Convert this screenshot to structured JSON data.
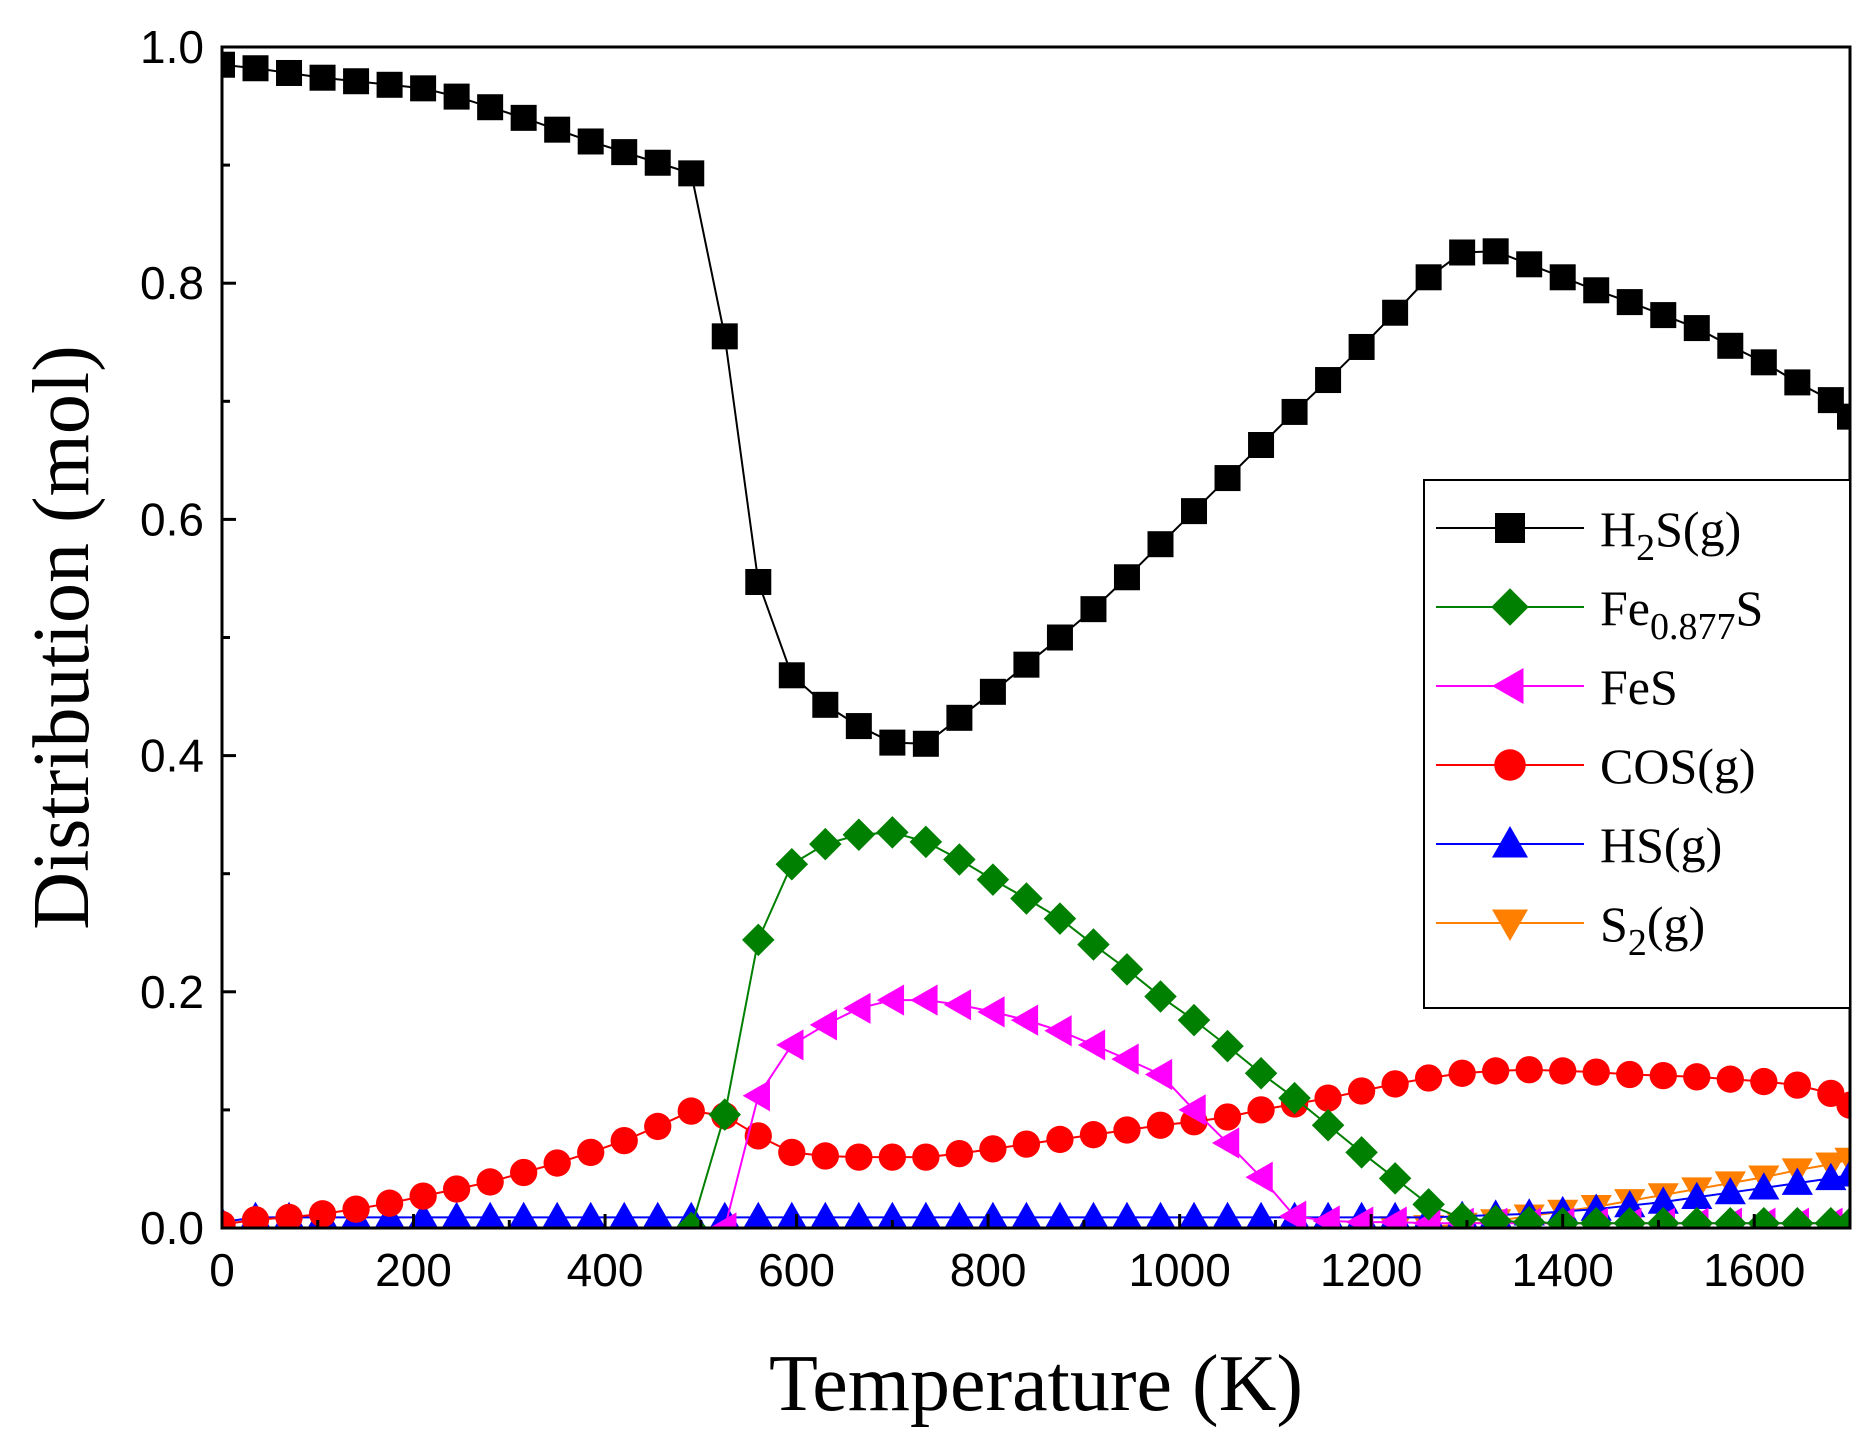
{
  "chart_data": {
    "type": "line",
    "xlabel": "Temperature (K)",
    "ylabel": "Distribution (mol)",
    "xlim": [
      0,
      1700
    ],
    "ylim": [
      0,
      1.0
    ],
    "xticks": [
      0,
      200,
      400,
      600,
      800,
      1000,
      1200,
      1400,
      1600
    ],
    "xtick_labels": [
      "0",
      "200",
      "400",
      "600",
      "800",
      "1000",
      "1200",
      "1400",
      "1600"
    ],
    "yticks": [
      0,
      0.2,
      0.4,
      0.6,
      0.8,
      1.0
    ],
    "ytick_labels": [
      "0.0",
      "0.2",
      "0.4",
      "0.6",
      "0.8",
      "1.0"
    ],
    "grid": false,
    "legend_position": "right",
    "x": [
      0,
      35,
      70,
      105,
      140,
      175,
      210,
      245,
      280,
      315,
      350,
      385,
      420,
      455,
      490,
      525,
      560,
      595,
      630,
      665,
      700,
      735,
      770,
      805,
      840,
      875,
      910,
      945,
      980,
      1015,
      1050,
      1085,
      1120,
      1155,
      1190,
      1225,
      1260,
      1295,
      1330,
      1365,
      1400,
      1435,
      1470,
      1505,
      1540,
      1575,
      1610,
      1645,
      1680,
      1700
    ],
    "series": [
      {
        "name": "H2S(g)",
        "label_main": "H",
        "label_sub": "2",
        "label_tail": "S(g)",
        "color": "#000000",
        "marker": "square",
        "values": [
          0.985,
          0.982,
          0.978,
          0.974,
          0.971,
          0.968,
          0.965,
          0.958,
          0.949,
          0.94,
          0.93,
          0.92,
          0.911,
          0.902,
          0.893,
          0.755,
          0.547,
          0.468,
          0.443,
          0.425,
          0.411,
          0.41,
          0.432,
          0.454,
          0.477,
          0.5,
          0.524,
          0.551,
          0.579,
          0.607,
          0.635,
          0.663,
          0.691,
          0.718,
          0.746,
          0.775,
          0.805,
          0.826,
          0.827,
          0.816,
          0.805,
          0.794,
          0.784,
          0.773,
          0.762,
          0.747,
          0.733,
          0.716,
          0.701,
          0.687
        ]
      },
      {
        "name": "Fe0.877S",
        "label_main": "Fe",
        "label_sub": "0.877",
        "label_tail": "S",
        "color": "#008000",
        "marker": "diamond",
        "values": [
          null,
          null,
          null,
          null,
          null,
          null,
          null,
          null,
          null,
          null,
          null,
          null,
          null,
          null,
          0.0,
          0.096,
          0.244,
          0.308,
          0.325,
          0.333,
          0.335,
          0.327,
          0.312,
          0.295,
          0.279,
          0.262,
          0.24,
          0.219,
          0.196,
          0.176,
          0.154,
          0.131,
          0.11,
          0.087,
          0.064,
          0.042,
          0.02,
          0.008,
          0.006,
          0.005,
          0.004,
          0.004,
          0.004,
          0.004,
          0.004,
          0.004,
          0.004,
          0.004,
          0.004,
          0.004
        ]
      },
      {
        "name": "FeS",
        "label_main": "FeS",
        "label_sub": "",
        "label_tail": "",
        "color": "#ff00ff",
        "marker": "triangle-left",
        "values": [
          null,
          null,
          null,
          null,
          null,
          null,
          null,
          null,
          null,
          null,
          null,
          null,
          null,
          null,
          null,
          0.0,
          0.112,
          0.155,
          0.172,
          0.186,
          0.193,
          0.193,
          0.189,
          0.183,
          0.176,
          0.167,
          0.155,
          0.143,
          0.13,
          0.1,
          0.072,
          0.043,
          0.01,
          0.006,
          0.005,
          0.005,
          0.004,
          0.004,
          0.004,
          0.004,
          0.004,
          0.004,
          0.004,
          0.004,
          0.004,
          0.004,
          0.004,
          0.004,
          0.004,
          0.004
        ]
      },
      {
        "name": "COS(g)",
        "label_main": "COS(g)",
        "label_sub": "",
        "label_tail": "",
        "color": "#ff0000",
        "marker": "circle",
        "values": [
          0.003,
          0.007,
          0.009,
          0.012,
          0.016,
          0.021,
          0.027,
          0.033,
          0.039,
          0.047,
          0.055,
          0.064,
          0.074,
          0.086,
          0.099,
          0.095,
          0.078,
          0.064,
          0.061,
          0.06,
          0.06,
          0.06,
          0.063,
          0.067,
          0.071,
          0.075,
          0.079,
          0.083,
          0.087,
          0.09,
          0.094,
          0.1,
          0.105,
          0.11,
          0.116,
          0.122,
          0.127,
          0.131,
          0.133,
          0.134,
          0.133,
          0.132,
          0.13,
          0.129,
          0.128,
          0.126,
          0.124,
          0.121,
          0.114,
          0.104
        ]
      },
      {
        "name": "HS(g)",
        "label_main": "HS(g)",
        "label_sub": "",
        "label_tail": "",
        "color": "#0000ff",
        "marker": "triangle-up",
        "values": [
          0.005,
          0.009,
          0.009,
          0.009,
          0.009,
          0.009,
          0.009,
          0.009,
          0.009,
          0.009,
          0.009,
          0.009,
          0.009,
          0.009,
          0.009,
          0.009,
          0.009,
          0.009,
          0.009,
          0.009,
          0.009,
          0.009,
          0.009,
          0.009,
          0.009,
          0.009,
          0.009,
          0.009,
          0.009,
          0.009,
          0.009,
          0.009,
          0.009,
          0.009,
          0.009,
          0.009,
          0.009,
          0.01,
          0.011,
          0.012,
          0.014,
          0.016,
          0.019,
          0.022,
          0.026,
          0.03,
          0.034,
          0.038,
          0.042,
          0.045
        ]
      },
      {
        "name": "S2(g)",
        "label_main": "S",
        "label_sub": "2",
        "label_tail": "(g)",
        "color": "#ff8000",
        "marker": "triangle-down",
        "values": [
          null,
          null,
          null,
          null,
          null,
          null,
          null,
          null,
          null,
          null,
          null,
          null,
          null,
          null,
          null,
          null,
          null,
          null,
          null,
          null,
          null,
          null,
          null,
          null,
          null,
          null,
          null,
          null,
          null,
          null,
          null,
          null,
          null,
          null,
          null,
          0.0,
          0.001,
          0.003,
          0.006,
          0.01,
          0.014,
          0.018,
          0.023,
          0.028,
          0.033,
          0.038,
          0.043,
          0.049,
          0.054,
          0.058
        ]
      }
    ]
  }
}
